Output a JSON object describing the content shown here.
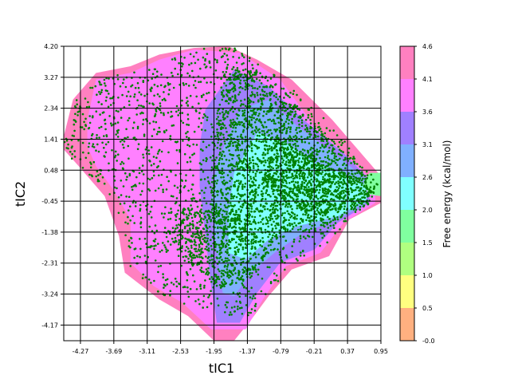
{
  "chart_data": {
    "type": "heatmap",
    "title": "",
    "xlabel": "tIC1",
    "ylabel": "tIC2",
    "xlim": [
      -4.56,
      0.95
    ],
    "ylim": [
      -4.64,
      4.2
    ],
    "x_ticks": [
      "-4.27",
      "-3.69",
      "-3.11",
      "-2.53",
      "-1.95",
      "-1.37",
      "-0.79",
      "-0.21",
      "0.37",
      "0.95"
    ],
    "x_tick_values": [
      -4.27,
      -3.69,
      -3.11,
      -2.53,
      -1.95,
      -1.37,
      -0.79,
      -0.21,
      0.37,
      0.95
    ],
    "y_ticks": [
      "4.20",
      "3.27",
      "2.34",
      "1.41",
      "0.48",
      "-0.45",
      "-1.38",
      "-2.31",
      "-3.24",
      "-4.17"
    ],
    "y_tick_values": [
      4.2,
      3.27,
      2.34,
      1.41,
      0.48,
      -0.45,
      -1.38,
      -2.31,
      -3.24,
      -4.17
    ],
    "grid": true,
    "colorbar": {
      "label": "Free energy (kcal/mol)",
      "levels": [
        -0.0,
        0.5,
        1.0,
        1.5,
        2.0,
        2.6,
        3.1,
        3.6,
        4.1,
        4.6
      ],
      "level_labels": [
        "-0.0",
        "0.5",
        "1.0",
        "1.5",
        "2.0",
        "2.6",
        "3.1",
        "3.6",
        "4.1",
        "4.6"
      ],
      "colors": [
        "#ffb080",
        "#ffff80",
        "#b0ff80",
        "#80ff9f",
        "#80ffff",
        "#80b0ff",
        "#a080ff",
        "#ff80ff",
        "#ff80c0"
      ]
    },
    "scatter_color": "#008000",
    "energy_regions": [
      {
        "level": 4.1,
        "color": "#ff80c0",
        "outline": [
          [
            -4.56,
            1.5
          ],
          [
            -4.4,
            2.6
          ],
          [
            -4.0,
            3.4
          ],
          [
            -3.4,
            3.6
          ],
          [
            -2.9,
            3.95
          ],
          [
            -2.3,
            4.15
          ],
          [
            -1.7,
            4.2
          ],
          [
            -1.2,
            3.8
          ],
          [
            -0.6,
            3.2
          ],
          [
            0.1,
            2.0
          ],
          [
            0.7,
            0.8
          ],
          [
            0.95,
            0.3
          ],
          [
            0.95,
            -0.5
          ],
          [
            0.4,
            -1.0
          ],
          [
            0.05,
            -2.1
          ],
          [
            -0.6,
            -2.5
          ],
          [
            -1.0,
            -3.3
          ],
          [
            -1.3,
            -4.0
          ],
          [
            -1.6,
            -4.64
          ],
          [
            -1.95,
            -4.64
          ],
          [
            -2.4,
            -3.9
          ],
          [
            -2.9,
            -3.4
          ],
          [
            -3.5,
            -2.6
          ],
          [
            -3.6,
            -1.5
          ],
          [
            -3.85,
            -0.3
          ],
          [
            -4.3,
            0.6
          ],
          [
            -4.56,
            1.1
          ]
        ]
      },
      {
        "level": 3.6,
        "color": "#ff80ff",
        "outline": [
          [
            -4.15,
            2.0
          ],
          [
            -4.0,
            3.2
          ],
          [
            -3.4,
            3.4
          ],
          [
            -2.9,
            3.8
          ],
          [
            -2.3,
            4.1
          ],
          [
            -1.5,
            4.0
          ],
          [
            -0.8,
            3.2
          ],
          [
            -0.2,
            1.8
          ],
          [
            0.5,
            0.7
          ],
          [
            0.85,
            0.1
          ],
          [
            0.85,
            -0.5
          ],
          [
            0.3,
            -1.1
          ],
          [
            -0.1,
            -2.0
          ],
          [
            -0.7,
            -2.4
          ],
          [
            -1.1,
            -3.4
          ],
          [
            -1.4,
            -4.3
          ],
          [
            -2.0,
            -4.3
          ],
          [
            -2.5,
            -3.5
          ],
          [
            -3.0,
            -3.0
          ],
          [
            -3.4,
            -2.3
          ],
          [
            -3.4,
            -1.0
          ],
          [
            -3.7,
            -0.1
          ],
          [
            -4.0,
            0.6
          ],
          [
            -4.15,
            1.2
          ]
        ]
      },
      {
        "level": 3.1,
        "color": "#a080ff",
        "outline": [
          [
            -2.1,
            2.3
          ],
          [
            -1.6,
            3.5
          ],
          [
            -1.0,
            3.0
          ],
          [
            -0.4,
            2.0
          ],
          [
            0.3,
            1.0
          ],
          [
            0.75,
            0.2
          ],
          [
            0.75,
            -0.5
          ],
          [
            0.2,
            -1.1
          ],
          [
            -0.2,
            -1.9
          ],
          [
            -0.8,
            -2.3
          ],
          [
            -1.2,
            -3.2
          ],
          [
            -1.5,
            -4.1
          ],
          [
            -1.9,
            -4.1
          ],
          [
            -2.0,
            -3.0
          ],
          [
            -2.1,
            -1.5
          ],
          [
            -2.2,
            0.0
          ],
          [
            -2.2,
            1.2
          ]
        ]
      },
      {
        "level": 2.6,
        "color": "#80b0ff",
        "outline": [
          [
            -1.9,
            0.7
          ],
          [
            -1.5,
            2.3
          ],
          [
            -1.0,
            2.6
          ],
          [
            -0.5,
            1.8
          ],
          [
            0.2,
            0.9
          ],
          [
            0.7,
            0.2
          ],
          [
            0.7,
            -0.5
          ],
          [
            0.2,
            -1.0
          ],
          [
            -0.4,
            -1.4
          ],
          [
            -0.9,
            -2.0
          ],
          [
            -1.3,
            -2.6
          ],
          [
            -1.6,
            -3.3
          ],
          [
            -1.8,
            -3.2
          ],
          [
            -1.9,
            -2.0
          ],
          [
            -2.0,
            -0.5
          ]
        ]
      },
      {
        "level": 2.0,
        "color": "#80ffff",
        "outline": [
          [
            -1.6,
            0.4
          ],
          [
            -1.2,
            1.6
          ],
          [
            -0.7,
            1.3
          ],
          [
            -0.2,
            0.7
          ],
          [
            0.4,
            0.3
          ],
          [
            0.7,
            0.0
          ],
          [
            0.7,
            -0.4
          ],
          [
            0.2,
            -0.9
          ],
          [
            -0.5,
            -1.2
          ],
          [
            -1.0,
            -1.6
          ],
          [
            -1.4,
            -2.2
          ],
          [
            -1.7,
            -2.0
          ],
          [
            -1.7,
            -0.8
          ]
        ]
      },
      {
        "level": 1.5,
        "color": "#80ff9f",
        "outline": [
          [
            0.75,
            0.4
          ],
          [
            0.95,
            0.4
          ],
          [
            0.95,
            -0.3
          ],
          [
            0.75,
            -0.25
          ],
          [
            0.65,
            0.05
          ]
        ]
      }
    ],
    "scatter_regions": [
      {
        "n": 1700,
        "outline": [
          [
            -4.56,
            1.3
          ],
          [
            -4.35,
            2.6
          ],
          [
            -3.9,
            3.3
          ],
          [
            -3.2,
            3.5
          ],
          [
            -2.7,
            3.8
          ],
          [
            -2.2,
            4.15
          ],
          [
            -1.6,
            4.15
          ],
          [
            -1.1,
            3.6
          ],
          [
            -0.5,
            2.8
          ],
          [
            0.1,
            1.8
          ],
          [
            0.6,
            0.8
          ],
          [
            0.9,
            0.2
          ],
          [
            0.9,
            -0.4
          ],
          [
            0.4,
            -0.9
          ],
          [
            0.0,
            -1.9
          ],
          [
            -0.6,
            -2.4
          ],
          [
            -1.0,
            -3.2
          ],
          [
            -1.3,
            -3.9
          ],
          [
            -1.8,
            -3.9
          ],
          [
            -2.4,
            -3.6
          ],
          [
            -2.9,
            -3.2
          ],
          [
            -3.4,
            -2.5
          ],
          [
            -3.5,
            -1.4
          ],
          [
            -3.7,
            -0.4
          ],
          [
            -4.2,
            0.5
          ],
          [
            -4.5,
            0.9
          ]
        ]
      },
      {
        "n": 1600,
        "outline": [
          [
            -2.0,
            0.5
          ],
          [
            -1.8,
            3.6
          ],
          [
            -1.2,
            3.5
          ],
          [
            -0.6,
            2.5
          ],
          [
            0.0,
            1.6
          ],
          [
            0.6,
            0.6
          ],
          [
            0.85,
            0.0
          ],
          [
            0.8,
            -0.5
          ],
          [
            0.2,
            -1.1
          ],
          [
            -0.5,
            -1.4
          ],
          [
            -1.1,
            -1.7
          ],
          [
            -1.6,
            -1.8
          ],
          [
            -2.0,
            -1.0
          ]
        ]
      },
      {
        "n": 500,
        "outline": [
          [
            -2.5,
            -0.6
          ],
          [
            -1.5,
            -0.8
          ],
          [
            -1.0,
            -2.0
          ],
          [
            -1.3,
            -2.8
          ],
          [
            -1.9,
            -3.1
          ],
          [
            -2.3,
            -2.4
          ],
          [
            -2.8,
            -1.6
          ]
        ]
      },
      {
        "n": 600,
        "outline": [
          [
            -0.9,
            1.6
          ],
          [
            -0.3,
            1.0
          ],
          [
            0.4,
            0.4
          ],
          [
            0.85,
            0.0
          ],
          [
            0.7,
            -0.5
          ],
          [
            0.0,
            -0.8
          ],
          [
            -0.6,
            -0.7
          ],
          [
            -1.1,
            0.2
          ]
        ]
      }
    ]
  }
}
